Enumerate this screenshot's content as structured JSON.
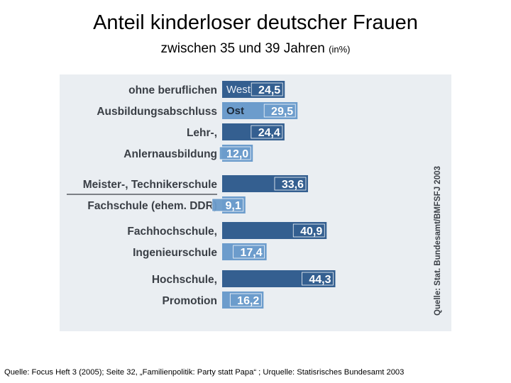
{
  "title": "Anteil kinderloser deutscher Frauen",
  "subtitle": "zwischen 35 und 39 Jahren",
  "subtitle_unit": "(in%)",
  "footer": "Quelle: Focus Heft 3 (2005); Seite 32, „Familienpolitik: Party statt Papa“ ;  Urquelle: Statisrisches Bundesamt 2003",
  "chart_data": {
    "type": "bar",
    "orientation": "horizontal",
    "source_note": "Quelle: Stat. Bundesamt/BMFSFJ 2003",
    "categories": [
      [
        "ohne beruflichen",
        "Ausbildungsabschluss"
      ],
      [
        "Lehr-,",
        "Anlernausbildung"
      ],
      [
        "Meister-, Technikerschule",
        "Fachschule (ehem. DDR)"
      ],
      [
        "Fachhochschule,",
        "Ingenieurschule"
      ],
      [
        "Hochschule,",
        "Promotion"
      ]
    ],
    "series": [
      {
        "name": "West",
        "values": [
          24.5,
          24.4,
          33.6,
          40.9,
          44.3
        ],
        "labels": [
          "24,5",
          "24,4",
          "33,6",
          "40,9",
          "44,3"
        ]
      },
      {
        "name": "Ost",
        "values": [
          29.5,
          12.0,
          9.1,
          17.4,
          16.2
        ],
        "labels": [
          "29,5",
          "12,0",
          "9,1",
          "17,4",
          "16,2"
        ]
      }
    ],
    "xlim": [
      0,
      50
    ],
    "colors": {
      "West": "#345f90",
      "Ost": "#6c9ccc",
      "panel": "#eaeef2",
      "label_text": "#3a3f46"
    }
  }
}
